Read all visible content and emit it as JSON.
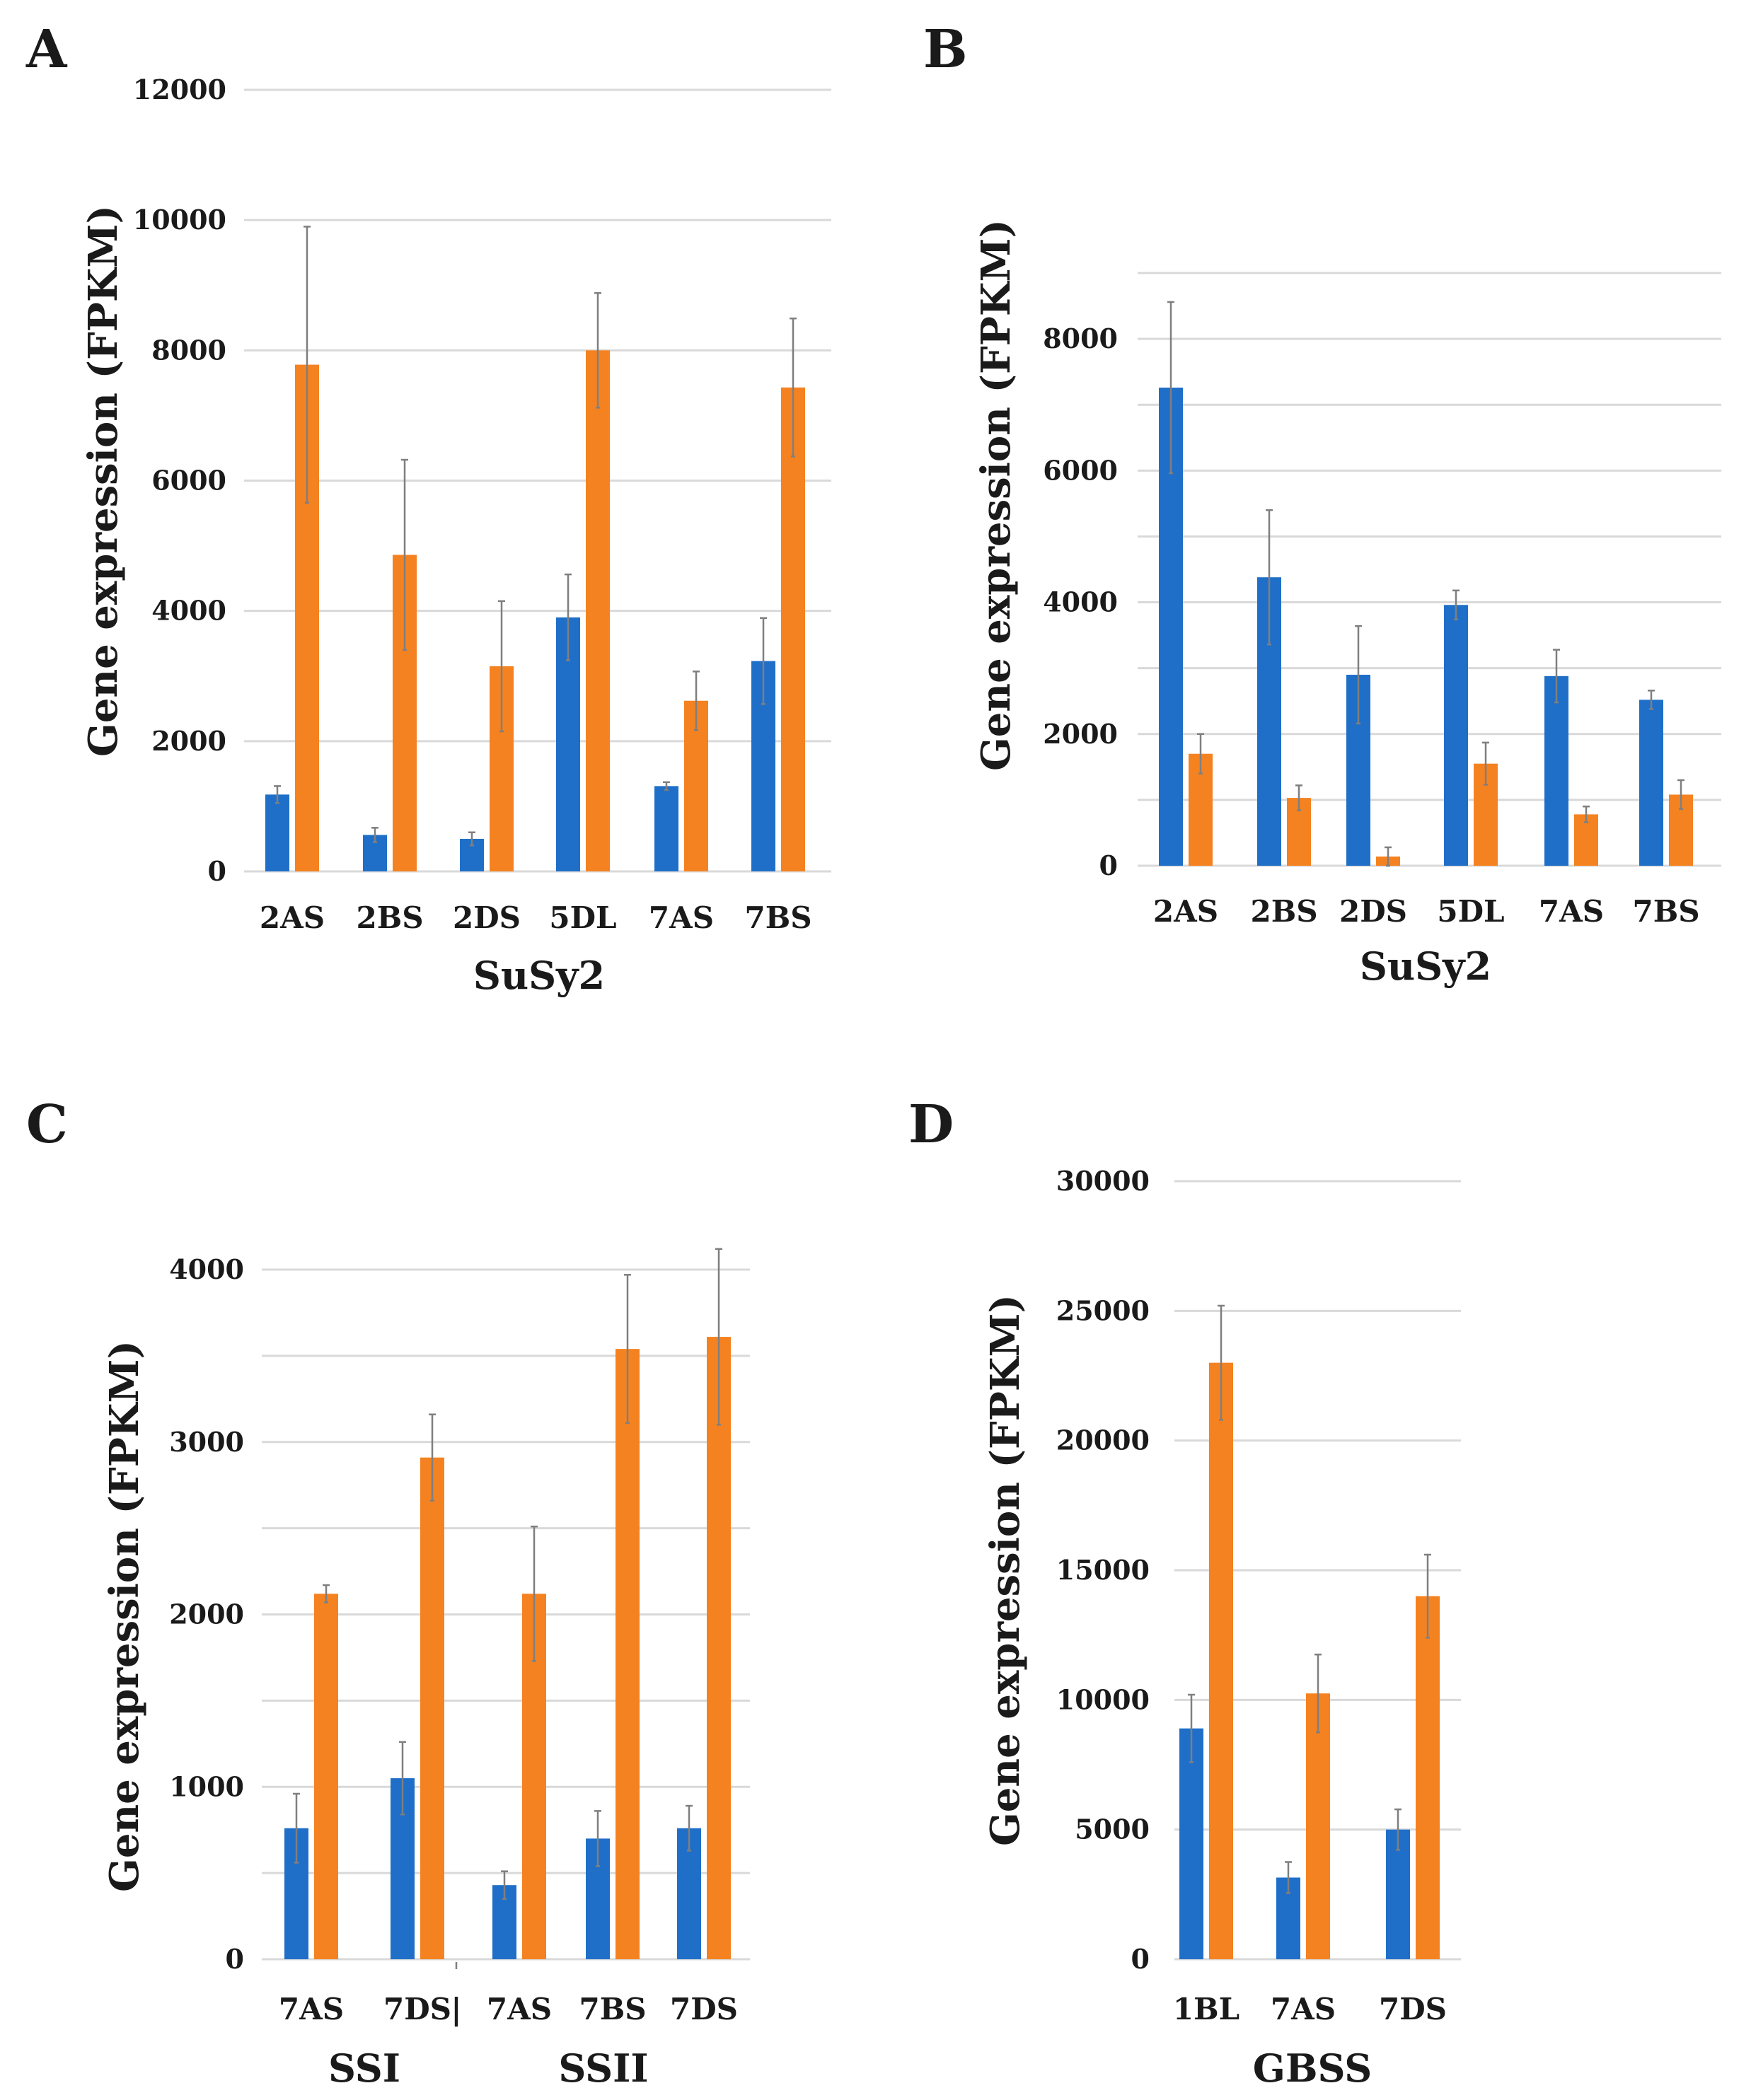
{
  "colors": {
    "series1": "#1f6fc9",
    "series2": "#f58220"
  },
  "chart_data": [
    {
      "panel_label": "A",
      "type": "bar",
      "xlabel": "SuSy2",
      "ylabel": "Gene expression (FPKM)",
      "ylim": [
        0,
        12000
      ],
      "ytick_step": 2000,
      "label_every": 1,
      "grid_step": 2000,
      "categories": [
        "2AS",
        "2BS",
        "2DS",
        "5DL",
        "7AS",
        "7BS"
      ],
      "series": [
        {
          "name": "series1",
          "values": [
            1180,
            560,
            500,
            3900,
            1310,
            3230
          ],
          "errors": [
            130,
            110,
            100,
            660,
            60,
            660
          ]
        },
        {
          "name": "series2",
          "values": [
            7780,
            4860,
            3150,
            8000,
            2620,
            7430
          ],
          "errors": [
            2120,
            1460,
            1000,
            880,
            450,
            1060
          ]
        }
      ],
      "groups": [
        {
          "label": "SuSy2",
          "start": 0,
          "end": 5
        }
      ]
    },
    {
      "panel_label": "B",
      "type": "bar",
      "xlabel": "SuSy2",
      "ylabel": "Gene expression (FPKM)",
      "ylim": [
        0,
        9000
      ],
      "ytick_step": 2000,
      "label_every": 1,
      "grid_step": 1000,
      "categories": [
        "2AS",
        "2BS",
        "2DS",
        "5DL",
        "7AS",
        "7BS"
      ],
      "series": [
        {
          "name": "series1",
          "values": [
            7260,
            4380,
            2900,
            3960,
            2880,
            2520
          ],
          "errors": [
            1300,
            1020,
            740,
            220,
            400,
            140
          ]
        },
        {
          "name": "series2",
          "values": [
            1700,
            1030,
            140,
            1550,
            780,
            1080
          ],
          "errors": [
            300,
            190,
            140,
            320,
            120,
            220
          ]
        }
      ],
      "groups": [
        {
          "label": "SuSy2",
          "start": 0,
          "end": 5
        }
      ]
    },
    {
      "panel_label": "C",
      "type": "bar",
      "xlabel": "",
      "ylabel": "Gene expression (FPKM)",
      "ylim": [
        0,
        4000
      ],
      "ytick_step": 1000,
      "label_every": 2,
      "grid_step": 500,
      "categories": [
        "7AS",
        "7DS",
        "7AS",
        "7BS",
        "7DS"
      ],
      "separator_text": "|",
      "series": [
        {
          "name": "series1",
          "values": [
            760,
            1050,
            430,
            700,
            760
          ],
          "errors": [
            200,
            210,
            80,
            160,
            130
          ]
        },
        {
          "name": "series2",
          "values": [
            2120,
            2910,
            2120,
            3540,
            3610
          ],
          "errors": [
            50,
            250,
            390,
            430,
            510
          ]
        }
      ],
      "groups": [
        {
          "label": "SSI",
          "start": 0,
          "end": 1
        },
        {
          "label": "SSII",
          "start": 2,
          "end": 4
        }
      ]
    },
    {
      "panel_label": "D",
      "type": "bar",
      "xlabel": "GBSS",
      "ylabel": "Gene expression (FPKM)",
      "ylim": [
        0,
        30000
      ],
      "ytick_step": 5000,
      "label_every": 1,
      "grid_step": 5000,
      "categories": [
        "1BL",
        "7AS",
        "7DS"
      ],
      "series": [
        {
          "name": "series1",
          "values": [
            8900,
            3150,
            5000
          ],
          "errors": [
            1300,
            600,
            780
          ]
        },
        {
          "name": "series2",
          "values": [
            23000,
            10250,
            14000
          ],
          "errors": [
            2200,
            1500,
            1600
          ]
        }
      ],
      "groups": [
        {
          "label": "GBSS",
          "start": 0,
          "end": 2
        }
      ]
    }
  ]
}
